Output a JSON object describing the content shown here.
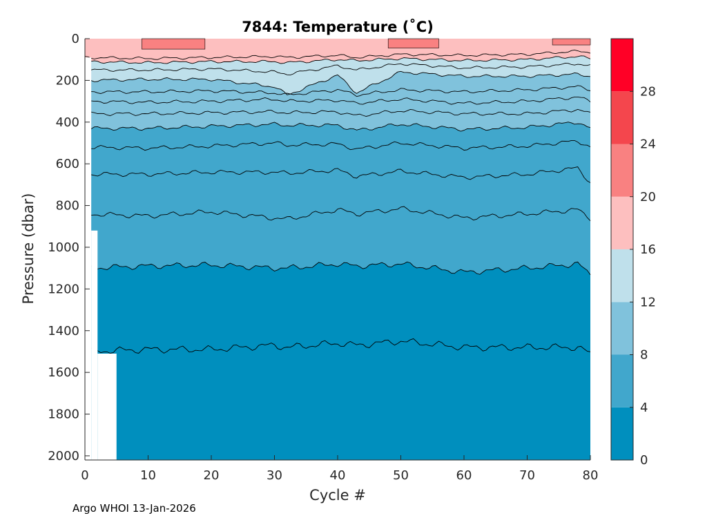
{
  "chart_data": {
    "type": "heatmap",
    "title": "7844:  Temperature (˚C)",
    "xlabel": "Cycle #",
    "ylabel": "Pressure (dbar)",
    "xlim": [
      0,
      80
    ],
    "ylim": [
      0,
      2020
    ],
    "y_reversed": true,
    "x_ticks": [
      0,
      10,
      20,
      30,
      40,
      50,
      60,
      70,
      80
    ],
    "y_ticks": [
      0,
      200,
      400,
      600,
      800,
      1000,
      1200,
      1400,
      1600,
      1800,
      2000
    ],
    "colorbar": {
      "range": [
        0,
        32
      ],
      "ticks": [
        0,
        4,
        8,
        12,
        16,
        20,
        24,
        28
      ],
      "bands": [
        {
          "min": 0,
          "max": 4,
          "color": "#008fbe"
        },
        {
          "min": 4,
          "max": 8,
          "color": "#41a7cc"
        },
        {
          "min": 8,
          "max": 12,
          "color": "#80c2dc"
        },
        {
          "min": 12,
          "max": 16,
          "color": "#bfe0eb"
        },
        {
          "min": 16,
          "max": 20,
          "color": "#fdbfbf"
        },
        {
          "min": 20,
          "max": 24,
          "color": "#f98181"
        },
        {
          "min": 24,
          "max": 28,
          "color": "#f4464d"
        },
        {
          "min": 28,
          "max": 32,
          "color": "#ff0026"
        }
      ]
    },
    "isotherm_depths_dbar": {
      "cycles": [
        0,
        10,
        20,
        30,
        32,
        40,
        43,
        50,
        60,
        70,
        78,
        80
      ],
      "lines": [
        {
          "temp": 18,
          "depths": [
            90,
            95,
            90,
            85,
            90,
            80,
            90,
            75,
            80,
            75,
            60,
            65
          ]
        },
        {
          "temp": 16,
          "depths": [
            110,
            115,
            110,
            110,
            115,
            100,
            105,
            95,
            105,
            100,
            85,
            95
          ]
        },
        {
          "temp": 14,
          "depths": [
            150,
            150,
            145,
            160,
            170,
            130,
            150,
            120,
            140,
            135,
            120,
            130
          ]
        },
        {
          "temp": 12,
          "depths": [
            200,
            195,
            195,
            230,
            270,
            175,
            260,
            160,
            180,
            180,
            170,
            180
          ]
        },
        {
          "temp": 11,
          "depths": [
            255,
            255,
            250,
            260,
            270,
            245,
            270,
            245,
            255,
            245,
            230,
            245
          ]
        },
        {
          "temp": 10,
          "depths": [
            300,
            305,
            300,
            290,
            300,
            295,
            310,
            290,
            310,
            300,
            280,
            300
          ]
        },
        {
          "temp": 9,
          "depths": [
            360,
            360,
            355,
            350,
            355,
            350,
            370,
            345,
            360,
            360,
            340,
            360
          ]
        },
        {
          "temp": 8,
          "depths": [
            430,
            430,
            420,
            410,
            415,
            415,
            440,
            410,
            435,
            425,
            400,
            430
          ]
        },
        {
          "temp": 7,
          "depths": [
            520,
            525,
            515,
            500,
            510,
            505,
            530,
            500,
            525,
            515,
            490,
            520
          ]
        },
        {
          "temp": 6,
          "depths": [
            650,
            650,
            640,
            640,
            645,
            630,
            660,
            635,
            665,
            650,
            620,
            690
          ]
        },
        {
          "temp": 5,
          "depths": [
            840,
            850,
            830,
            860,
            865,
            820,
            840,
            815,
            860,
            840,
            820,
            860
          ]
        },
        {
          "temp": 4,
          "depths": [
            1100,
            1090,
            1085,
            1100,
            1100,
            1080,
            1090,
            1080,
            1120,
            1100,
            1080,
            1130
          ]
        },
        {
          "temp": 3,
          "depths": [
            1500,
            1490,
            1490,
            1470,
            1480,
            1460,
            1470,
            1450,
            1480,
            1480,
            1480,
            1510
          ]
        }
      ]
    },
    "surface_warm_patches": [
      {
        "temp_band": "20-24",
        "cycles": [
          9,
          19
        ],
        "depth_max": 50
      },
      {
        "temp_band": "20-24",
        "cycles": [
          48,
          56
        ],
        "depth_max": 45
      },
      {
        "temp_band": "20-24",
        "cycles": [
          74,
          80
        ],
        "depth_max": 30
      }
    ],
    "data_gaps": [
      {
        "cycles": [
          0,
          1
        ],
        "depths": [
          90,
          2020
        ]
      },
      {
        "cycles": [
          1,
          2
        ],
        "depths": [
          920,
          2020
        ]
      },
      {
        "cycles": [
          2,
          5
        ],
        "depths": [
          1510,
          2020
        ]
      }
    ],
    "footer": "Argo WHOI 13-Jan-2026"
  }
}
